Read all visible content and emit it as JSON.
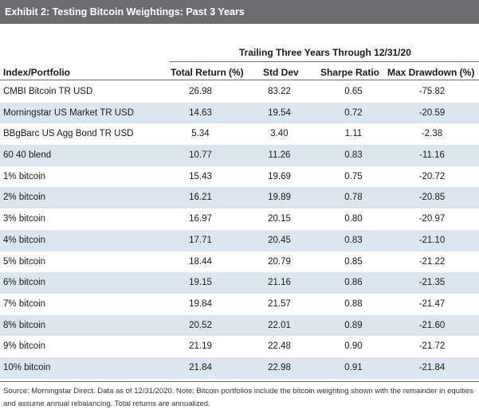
{
  "title": "Exhibit 2: Testing Bitcoin Weightings: Past 3 Years",
  "span_header": "Trailing Three Years Through 12/31/20",
  "columns": {
    "name": "Index/Portfolio",
    "total_return": "Total Return",
    "total_return_unit": "(%)",
    "std_dev": "Std Dev",
    "sharpe": "Sharpe Ratio",
    "max_drawdown": "Max Drawdown (%)"
  },
  "rows": [
    {
      "name": "CMBI Bitcoin TR USD",
      "total_return": "26.98",
      "std_dev": "83.22",
      "sharpe": "0.65",
      "max_drawdown": "-75.82"
    },
    {
      "name": "Morningstar US Market TR USD",
      "total_return": "14.63",
      "std_dev": "19.54",
      "sharpe": "0.72",
      "max_drawdown": "-20.59"
    },
    {
      "name": "BBgBarc US Agg Bond TR USD",
      "total_return": "5.34",
      "std_dev": "3.40",
      "sharpe": "1.11",
      "max_drawdown": "-2.38"
    },
    {
      "name": "60 40 blend",
      "total_return": "10.77",
      "std_dev": "11.26",
      "sharpe": "0.83",
      "max_drawdown": "-11.16"
    },
    {
      "name": "1% bitcoin",
      "total_return": "15.43",
      "std_dev": "19.69",
      "sharpe": "0.75",
      "max_drawdown": "-20.72"
    },
    {
      "name": "2% bitcoin",
      "total_return": "16.21",
      "std_dev": "19.89",
      "sharpe": "0.78",
      "max_drawdown": "-20.85"
    },
    {
      "name": "3% bitcoin",
      "total_return": "16.97",
      "std_dev": "20.15",
      "sharpe": "0.80",
      "max_drawdown": "-20.97"
    },
    {
      "name": "4% bitcoin",
      "total_return": "17.71",
      "std_dev": "20.45",
      "sharpe": "0.83",
      "max_drawdown": "-21.10"
    },
    {
      "name": "5% bitcoin",
      "total_return": "18.44",
      "std_dev": "20.79",
      "sharpe": "0.85",
      "max_drawdown": "-21.22"
    },
    {
      "name": "6% bitcoin",
      "total_return": "19.15",
      "std_dev": "21.16",
      "sharpe": "0.86",
      "max_drawdown": "-21.35"
    },
    {
      "name": "7% bitcoin",
      "total_return": "19.84",
      "std_dev": "21.57",
      "sharpe": "0.88",
      "max_drawdown": "-21.47"
    },
    {
      "name": "8% bitcoin",
      "total_return": "20.52",
      "std_dev": "22.01",
      "sharpe": "0.89",
      "max_drawdown": "-21.60"
    },
    {
      "name": "9% bitcoin",
      "total_return": "21.19",
      "std_dev": "22.48",
      "sharpe": "0.90",
      "max_drawdown": "-21.72"
    },
    {
      "name": "10% bitcoin",
      "total_return": "21.84",
      "std_dev": "22.98",
      "sharpe": "0.91",
      "max_drawdown": "-21.84"
    }
  ],
  "footnote": "Source: Morningstar Direct. Data as of 12/31/2020. Note: Bitcoin portfolios include the bitcoin weighting shown with the remainder in equities and assume annual rebalancing. Total returns are annualized.",
  "colors": {
    "title_bar": "#6d6e71",
    "row_shade": "#dce6f1"
  }
}
